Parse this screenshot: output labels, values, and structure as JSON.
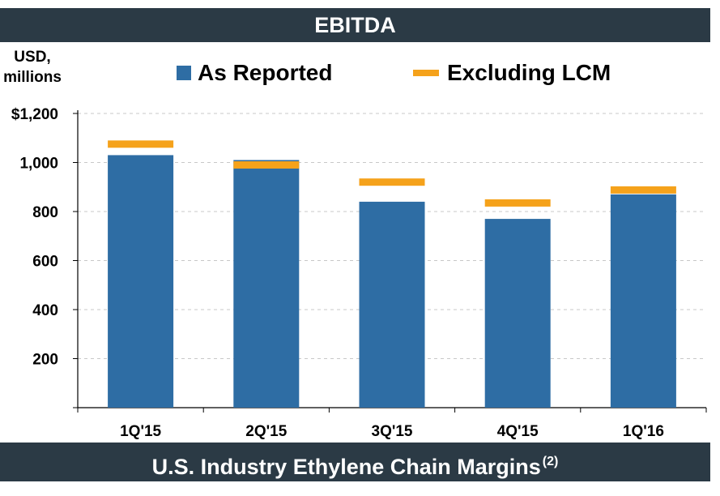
{
  "header": {
    "title": "EBITDA"
  },
  "units": {
    "line1": "USD,",
    "line2": "millions"
  },
  "legend": {
    "reported": "As Reported",
    "excluding": "Excluding LCM"
  },
  "colors": {
    "bar": "#2e6da4",
    "marker": "#f5a21b",
    "banner": "#2b3a45"
  },
  "footer": {
    "title": "U.S. Industry Ethylene Chain Margins",
    "superscript": "(2)"
  },
  "chart_data": {
    "type": "bar",
    "title": "EBITDA",
    "ylabel": "USD, millions",
    "categories": [
      "1Q'15",
      "2Q'15",
      "3Q'15",
      "4Q'15",
      "1Q'16"
    ],
    "series": [
      {
        "name": "As Reported",
        "values": [
          1030,
          1010,
          840,
          770,
          870
        ]
      },
      {
        "name": "Excluding LCM",
        "values": [
          1075,
          990,
          920,
          835,
          888
        ]
      }
    ],
    "ylim": [
      0,
      1200
    ],
    "yticks": [
      0,
      200,
      400,
      600,
      800,
      1000,
      1200
    ],
    "ytick_labels": [
      "",
      "200",
      "400",
      "600",
      "800",
      "1,000",
      "$1,200"
    ],
    "grid": true,
    "legend_position": "top"
  }
}
